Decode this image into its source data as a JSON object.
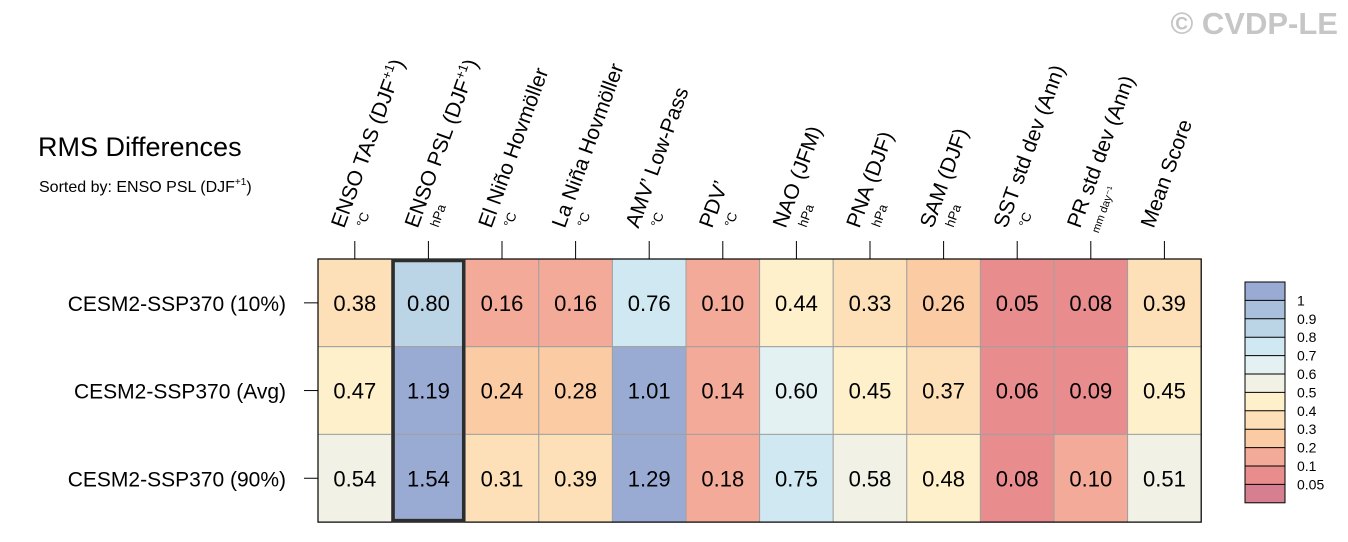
{
  "watermark": "© CVDP-LE",
  "chart_data": {
    "type": "heatmap",
    "title": "RMS Differences",
    "subtitle_prefix": "Sorted by: ENSO PSL (DJF",
    "subtitle_sup": "+1",
    "subtitle_suffix": ")",
    "sorted_column_index": 1,
    "columns": [
      {
        "label": "ENSO TAS (DJF",
        "sup": "+1",
        "suffix": ")",
        "unit": "°C"
      },
      {
        "label": "ENSO PSL (DJF",
        "sup": "+1",
        "suffix": ")",
        "unit": "hPa"
      },
      {
        "label": "El Niño Hovmöller",
        "sup": "",
        "suffix": "",
        "unit": "°C"
      },
      {
        "label": "La Niña Hovmöller",
        "sup": "",
        "suffix": "",
        "unit": "°C"
      },
      {
        "label": "AMV’ Low-Pass",
        "sup": "",
        "suffix": "",
        "unit": "°C"
      },
      {
        "label": "PDV’",
        "sup": "",
        "suffix": "",
        "unit": "°C"
      },
      {
        "label": "NAO (JFM)",
        "sup": "",
        "suffix": "",
        "unit": "hPa"
      },
      {
        "label": "PNA (DJF)",
        "sup": "",
        "suffix": "",
        "unit": "hPa"
      },
      {
        "label": "SAM (DJF)",
        "sup": "",
        "suffix": "",
        "unit": "hPa"
      },
      {
        "label": "SST std dev (Ann)",
        "sup": "",
        "suffix": "",
        "unit": "°C"
      },
      {
        "label": "PR std dev (Ann)",
        "sup": "",
        "suffix": "",
        "unit": "mm day⁻¹"
      },
      {
        "label": "Mean Score",
        "sup": "",
        "suffix": "",
        "unit": ""
      }
    ],
    "rows": [
      {
        "label": "CESM2-SSP370 (10%)",
        "values": [
          0.38,
          0.8,
          0.16,
          0.16,
          0.76,
          0.1,
          0.44,
          0.33,
          0.26,
          0.05,
          0.08,
          0.39
        ]
      },
      {
        "label": "CESM2-SSP370 (Avg)",
        "values": [
          0.47,
          1.19,
          0.24,
          0.28,
          1.01,
          0.14,
          0.6,
          0.45,
          0.37,
          0.06,
          0.09,
          0.45
        ]
      },
      {
        "label": "CESM2-SSP370 (90%)",
        "values": [
          0.54,
          1.54,
          0.31,
          0.39,
          1.29,
          0.18,
          0.75,
          0.58,
          0.48,
          0.08,
          0.1,
          0.51
        ]
      }
    ],
    "colorbar": {
      "labels": [
        "1",
        "0.9",
        "0.8",
        "0.7",
        "0.6",
        "0.5",
        "0.4",
        "0.3",
        "0.2",
        "0.1",
        "0.05"
      ],
      "bins": [
        {
          "min": 1.0,
          "color": "#9aabd3"
        },
        {
          "min": 0.9,
          "color": "#a9bfdc"
        },
        {
          "min": 0.8,
          "color": "#bcd5e6"
        },
        {
          "min": 0.7,
          "color": "#d0e8f2"
        },
        {
          "min": 0.6,
          "color": "#e4f1f2"
        },
        {
          "min": 0.5,
          "color": "#f2f1e6"
        },
        {
          "min": 0.4,
          "color": "#fdf0cb"
        },
        {
          "min": 0.3,
          "color": "#fde0b8"
        },
        {
          "min": 0.2,
          "color": "#fbcba4"
        },
        {
          "min": 0.1,
          "color": "#f4aa98"
        },
        {
          "min": 0.05,
          "color": "#e88c8d"
        },
        {
          "min": 0.0,
          "color": "#d67f90"
        }
      ]
    }
  }
}
